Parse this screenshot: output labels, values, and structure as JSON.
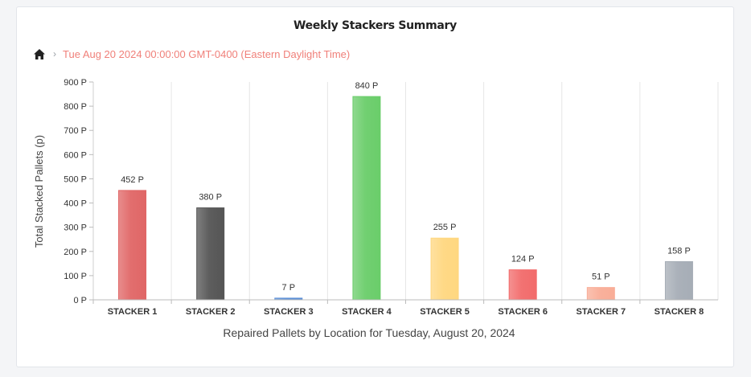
{
  "chart_data": {
    "type": "bar",
    "title": "Weekly Stackers Summary",
    "breadcrumb": {
      "current": "Tue Aug 20 2024 00:00:00 GMT-0400 (Eastern Daylight Time)"
    },
    "xlabel": "Repaired Pallets by Location for Tuesday, August 20, 2024",
    "ylabel": "Total Stacked Pallets (p)",
    "ylim": [
      0,
      900
    ],
    "yticks": [
      {
        "value": 0,
        "label": "0 P"
      },
      {
        "value": 100,
        "label": "100 P"
      },
      {
        "value": 200,
        "label": "200 P"
      },
      {
        "value": 300,
        "label": "300 P"
      },
      {
        "value": 400,
        "label": "400 P"
      },
      {
        "value": 500,
        "label": "500 P"
      },
      {
        "value": 600,
        "label": "600 P"
      },
      {
        "value": 700,
        "label": "700 P"
      },
      {
        "value": 800,
        "label": "800 P"
      },
      {
        "value": 900,
        "label": "900 P"
      }
    ],
    "categories": [
      "STACKER 1",
      "STACKER 2",
      "STACKER 3",
      "STACKER 4",
      "STACKER 5",
      "STACKER 6",
      "STACKER 7",
      "STACKER 8"
    ],
    "values": [
      452,
      380,
      7,
      840,
      255,
      124,
      51,
      158
    ],
    "value_labels": [
      "452 P",
      "380 P",
      "7 P",
      "840 P",
      "255 P",
      "124 P",
      "51 P",
      "158 P"
    ],
    "colors": [
      "#e06666",
      "#555555",
      "#5b8fd6",
      "#6acd6a",
      "#ffd780",
      "#f26b6b",
      "#f9ad97",
      "#a6adb6"
    ],
    "grid": true
  }
}
